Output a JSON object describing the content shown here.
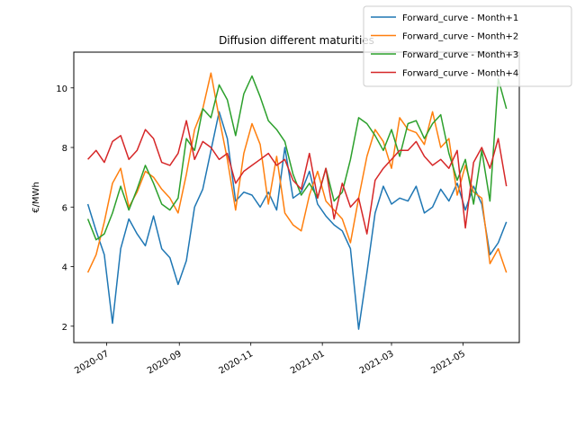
{
  "chart_data": {
    "type": "line",
    "title": "Diffusion different maturities",
    "xlabel": "",
    "ylabel": "€/MWh",
    "xlim": [
      "2020-06-03",
      "2021-06-18"
    ],
    "ylim": [
      1.45,
      11.2
    ],
    "x_ticks": [
      "2020-07",
      "2020-09",
      "2020-11",
      "2021-01",
      "2021-03",
      "2021-05"
    ],
    "y_ticks": [
      2,
      4,
      6,
      8,
      10
    ],
    "grid": false,
    "legend_position": "top-right",
    "colors": {
      "Forward_curve - Month+1": "#1f77b4",
      "Forward_curve - Month+2": "#ff7f0e",
      "Forward_curve - Month+3": "#2ca02c",
      "Forward_curve - Month+4": "#d62728"
    },
    "x": [
      "2020-06-15",
      "2020-06-22",
      "2020-06-29",
      "2020-07-06",
      "2020-07-13",
      "2020-07-20",
      "2020-07-27",
      "2020-08-03",
      "2020-08-10",
      "2020-08-17",
      "2020-08-24",
      "2020-08-31",
      "2020-09-07",
      "2020-09-14",
      "2020-09-21",
      "2020-09-28",
      "2020-10-05",
      "2020-10-12",
      "2020-10-19",
      "2020-10-26",
      "2020-11-02",
      "2020-11-09",
      "2020-11-16",
      "2020-11-23",
      "2020-11-30",
      "2020-12-07",
      "2020-12-14",
      "2020-12-21",
      "2020-12-28",
      "2021-01-04",
      "2021-01-11",
      "2021-01-18",
      "2021-01-25",
      "2021-02-01",
      "2021-02-08",
      "2021-02-15",
      "2021-02-22",
      "2021-03-01",
      "2021-03-08",
      "2021-03-15",
      "2021-03-22",
      "2021-03-29",
      "2021-04-05",
      "2021-04-12",
      "2021-04-19",
      "2021-04-26",
      "2021-05-03",
      "2021-05-10",
      "2021-05-17",
      "2021-05-24",
      "2021-05-31",
      "2021-06-07"
    ],
    "series": [
      {
        "name": "Forward_curve - Month+1",
        "values": [
          6.1,
          5.2,
          4.4,
          2.1,
          4.6,
          5.6,
          5.1,
          4.7,
          5.7,
          4.6,
          4.3,
          3.4,
          4.2,
          6.0,
          6.6,
          7.9,
          9.2,
          8.3,
          6.2,
          6.5,
          6.4,
          6.0,
          6.5,
          5.9,
          8.0,
          6.3,
          6.5,
          7.2,
          6.1,
          5.7,
          5.4,
          5.2,
          4.6,
          1.9,
          3.8,
          5.8,
          6.7,
          6.1,
          6.3,
          6.2,
          6.7,
          5.8,
          6.0,
          6.6,
          6.2,
          6.8,
          5.9,
          6.7,
          6.1,
          4.4,
          4.8,
          5.5
        ]
      },
      {
        "name": "Forward_curve - Month+2",
        "values": [
          3.8,
          4.4,
          5.5,
          6.8,
          7.3,
          6.0,
          6.5,
          7.2,
          7.0,
          6.6,
          6.3,
          5.8,
          7.1,
          8.6,
          9.3,
          10.5,
          9.0,
          7.6,
          5.9,
          7.8,
          8.8,
          8.1,
          6.1,
          7.7,
          5.8,
          5.4,
          5.2,
          6.4,
          7.2,
          6.2,
          5.9,
          5.6,
          4.8,
          6.3,
          7.7,
          8.6,
          8.2,
          7.3,
          9.0,
          8.6,
          8.5,
          8.1,
          9.2,
          8.0,
          8.3,
          6.4,
          7.4,
          6.5,
          6.3,
          4.1,
          4.6,
          3.8
        ]
      },
      {
        "name": "Forward_curve - Month+3",
        "values": [
          5.6,
          4.9,
          5.1,
          5.8,
          6.7,
          5.9,
          6.6,
          7.4,
          6.8,
          6.1,
          5.9,
          6.3,
          8.3,
          7.9,
          9.3,
          9.0,
          10.1,
          9.6,
          8.4,
          9.8,
          10.4,
          9.7,
          8.9,
          8.6,
          8.2,
          7.1,
          6.4,
          6.8,
          6.3,
          7.3,
          6.2,
          6.5,
          7.6,
          9.0,
          8.8,
          8.4,
          7.9,
          8.6,
          7.7,
          8.8,
          8.9,
          8.3,
          8.8,
          9.1,
          7.8,
          6.9,
          7.6,
          6.1,
          7.9,
          6.2,
          10.3,
          9.3
        ]
      },
      {
        "name": "Forward_curve - Month+4",
        "values": [
          7.6,
          7.9,
          7.5,
          8.2,
          8.4,
          7.6,
          7.9,
          8.6,
          8.3,
          7.5,
          7.4,
          7.8,
          8.9,
          7.6,
          8.2,
          8.0,
          7.6,
          7.8,
          6.8,
          7.2,
          7.4,
          7.6,
          7.8,
          7.4,
          7.6,
          6.9,
          6.6,
          7.8,
          6.3,
          7.3,
          5.6,
          6.8,
          6.0,
          6.3,
          5.1,
          6.9,
          7.3,
          7.6,
          7.9,
          7.9,
          8.2,
          7.7,
          7.4,
          7.6,
          7.3,
          7.9,
          5.3,
          7.5,
          8.0,
          7.3,
          8.3,
          6.7
        ]
      }
    ]
  }
}
